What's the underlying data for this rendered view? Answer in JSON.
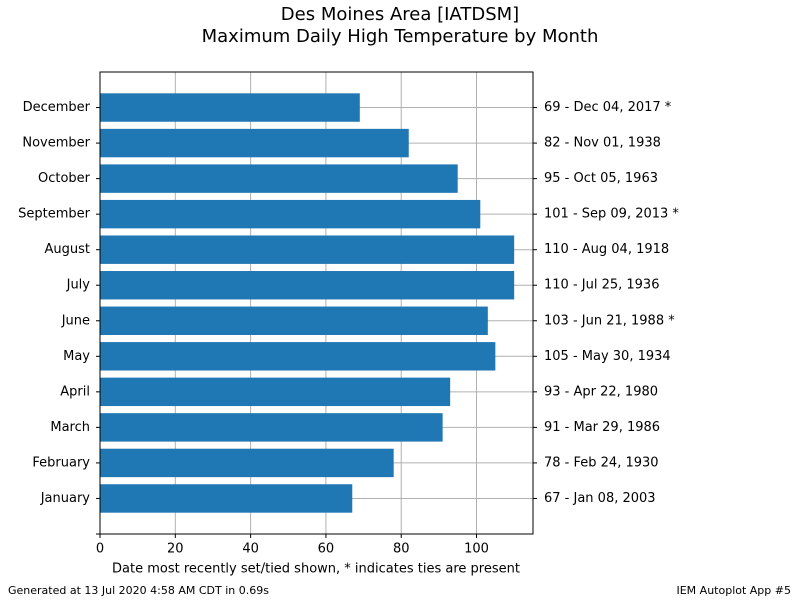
{
  "chart_data": {
    "type": "barh",
    "title": "Des Moines Area [IATDSM]",
    "subtitle": "Maximum Daily High Temperature by Month",
    "xlabel": "Date most recently set/tied shown, * indicates ties are present",
    "footnote": "Generated at 13 Jul 2020 4:58 AM CDT in 0.69s",
    "credit": "IEM Autoplot App #5",
    "categories": [
      "January",
      "February",
      "March",
      "April",
      "May",
      "June",
      "July",
      "August",
      "September",
      "October",
      "November",
      "December"
    ],
    "values": [
      67,
      78,
      91,
      93,
      105,
      103,
      110,
      110,
      101,
      95,
      82,
      69
    ],
    "value_labels": [
      "67 - Jan 08, 2003",
      "78 - Feb 24, 1930",
      "91 - Mar 29, 1986",
      "93 - Apr 22, 1980",
      "105 - May 30, 1934",
      "103 - Jun 21, 1988 *",
      "110 - Jul 25, 1936",
      "110 - Aug 04, 1918",
      "101 - Sep 09, 2013 *",
      "95 - Oct 05, 1963",
      "82 - Nov 01, 1938",
      "69 - Dec 04, 2017 *"
    ],
    "color": "#1f77b4",
    "xlim": [
      0,
      115
    ],
    "xticks": [
      0,
      20,
      40,
      60,
      80,
      100
    ],
    "grid": true
  }
}
